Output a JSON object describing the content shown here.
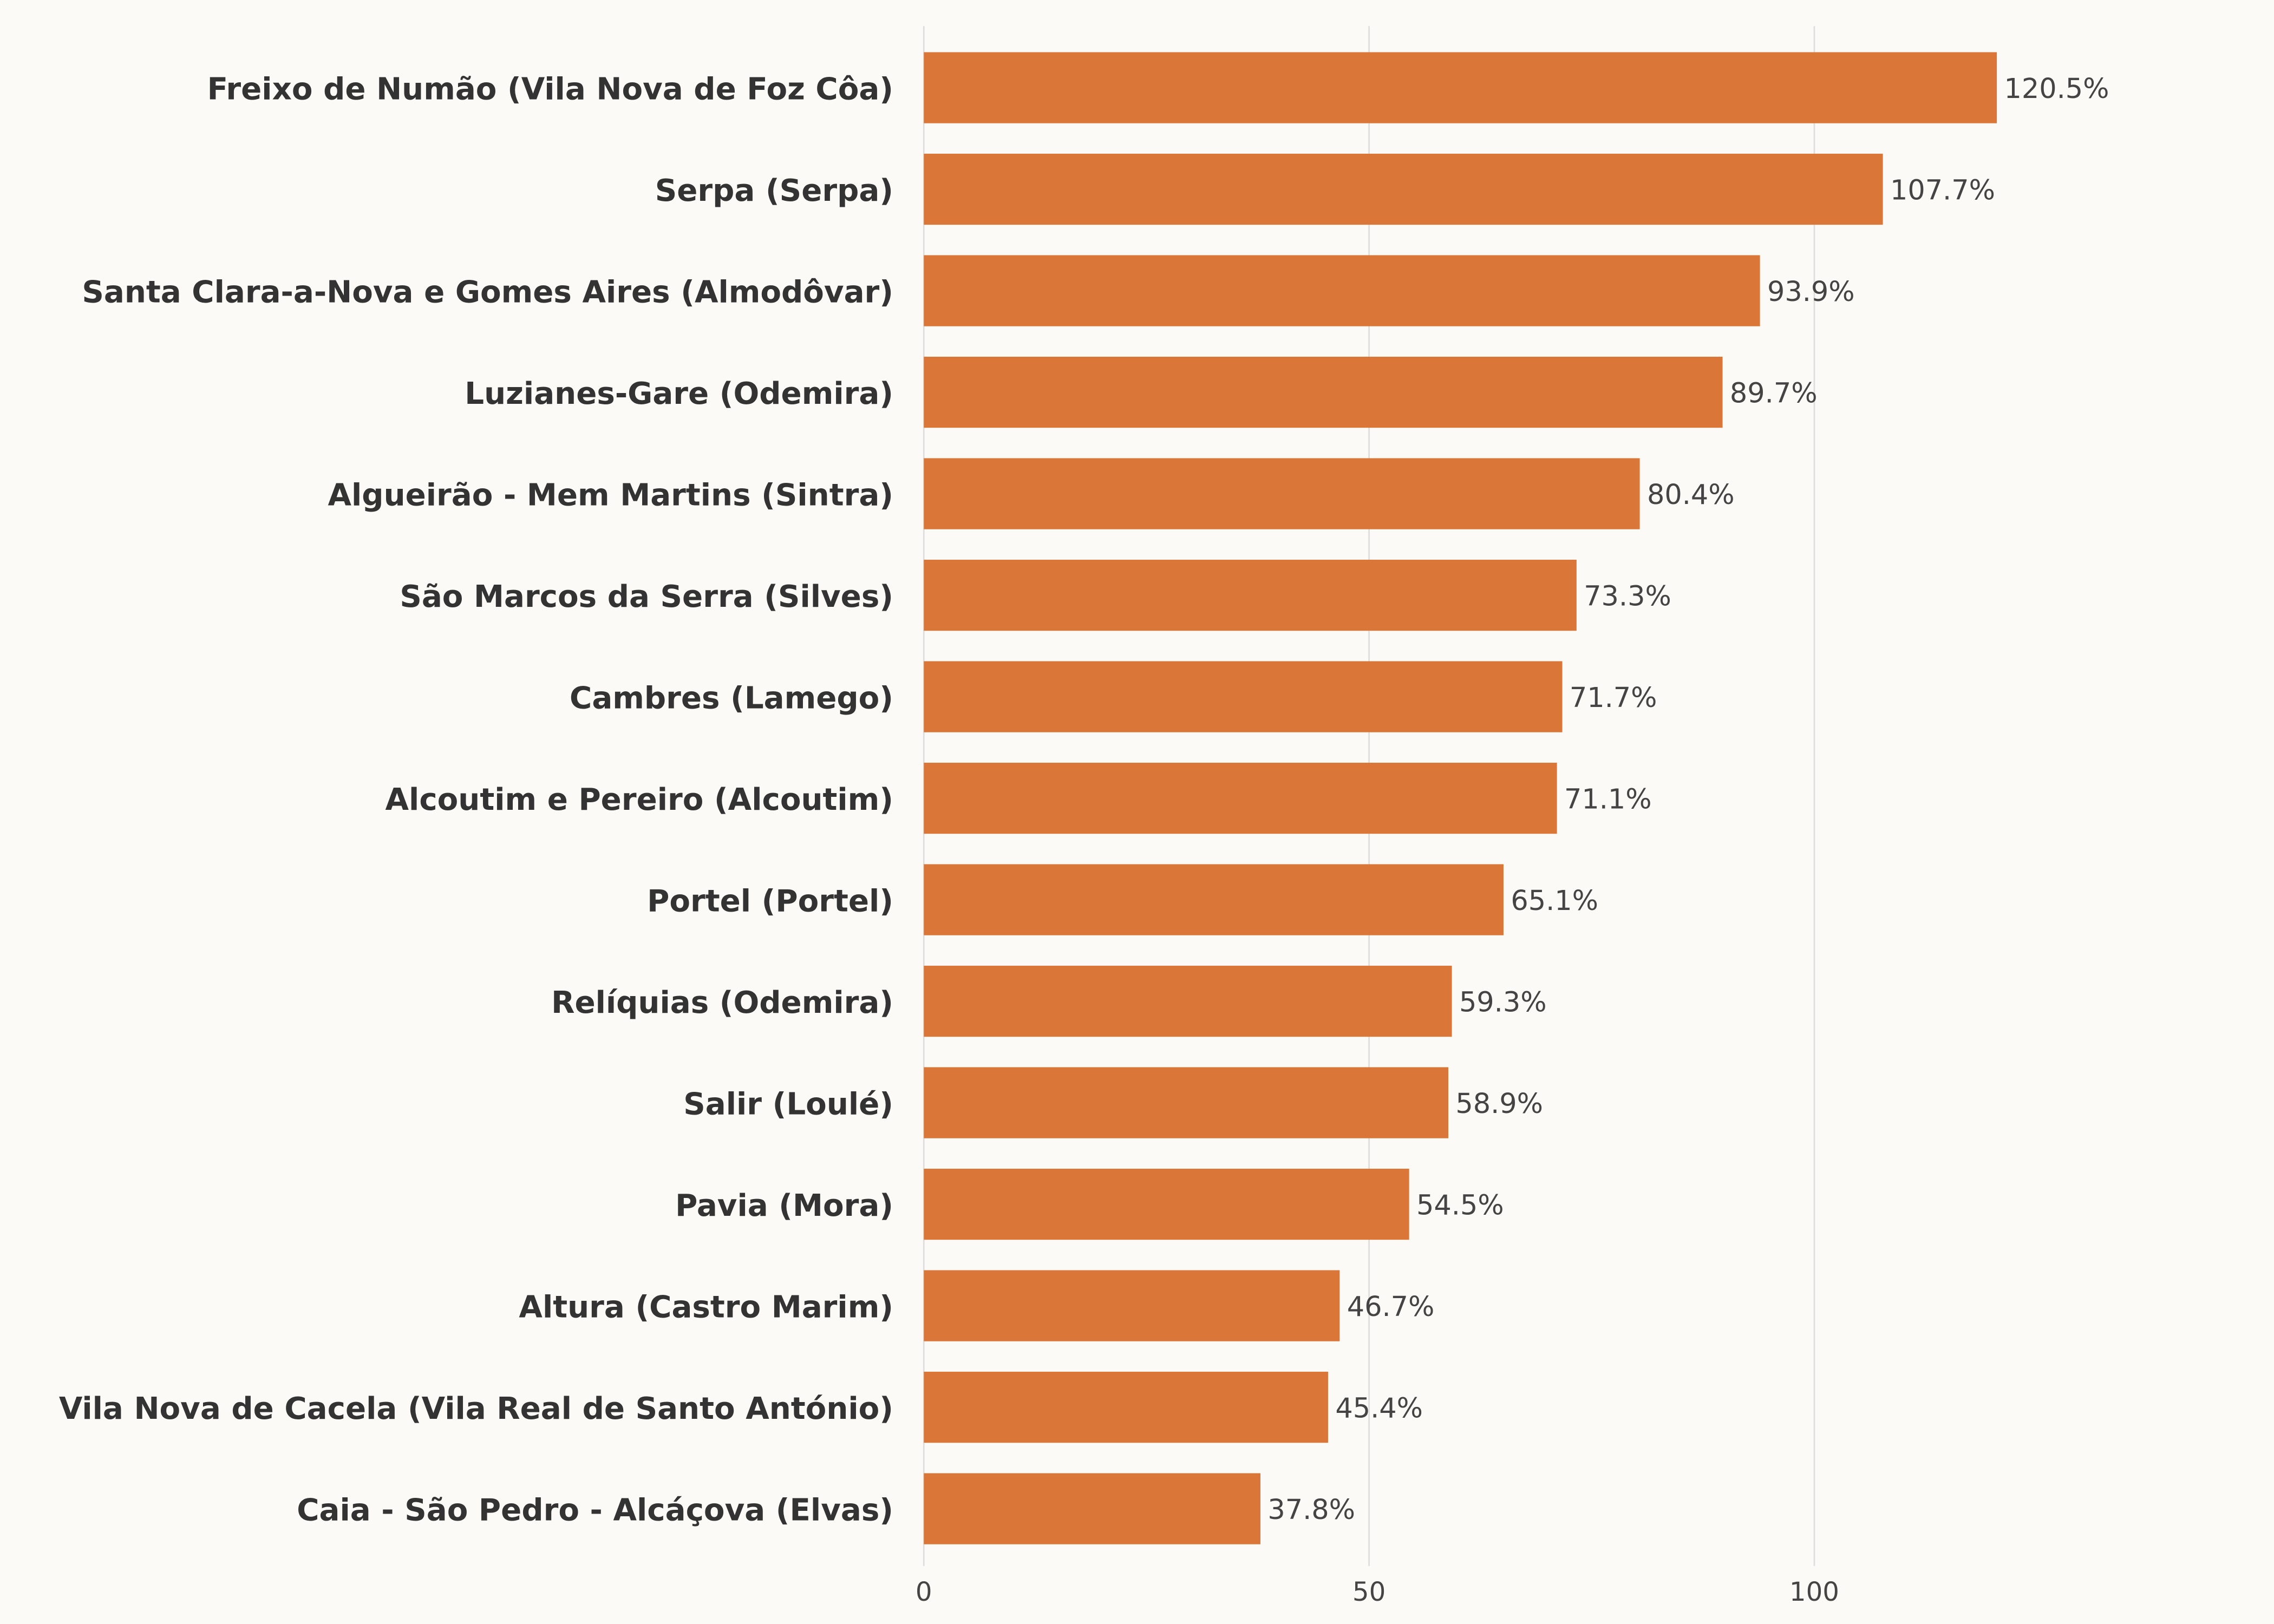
{
  "chart_data": {
    "type": "bar",
    "orientation": "horizontal",
    "categories": [
      "Freixo de Numão (Vila Nova de Foz Côa)",
      "Serpa (Serpa)",
      "Santa Clara-a-Nova e Gomes Aires (Almodôvar)",
      "Luzianes-Gare (Odemira)",
      "Algueirão - Mem Martins (Sintra)",
      "São Marcos da Serra (Silves)",
      "Cambres (Lamego)",
      "Alcoutim e Pereiro (Alcoutim)",
      "Portel (Portel)",
      "Relíquias (Odemira)",
      "Salir (Loulé)",
      "Pavia (Mora)",
      "Altura (Castro Marim)",
      "Vila Nova de Cacela (Vila Real de Santo António)",
      "Caia - São Pedro - Alcáçova (Elvas)"
    ],
    "values": [
      120.5,
      107.7,
      93.9,
      89.7,
      80.4,
      73.3,
      71.7,
      71.1,
      65.1,
      59.3,
      58.9,
      54.5,
      46.7,
      45.4,
      37.8
    ],
    "value_labels": [
      "120.5%",
      "107.7%",
      "93.9%",
      "89.7%",
      "80.4%",
      "73.3%",
      "71.7%",
      "71.1%",
      "65.1%",
      "59.3%",
      "58.9%",
      "54.5%",
      "46.7%",
      "45.4%",
      "37.8%"
    ],
    "xticks": [
      "0",
      "50",
      "100"
    ],
    "xtick_values": [
      0,
      50,
      100
    ],
    "xlim": [
      0,
      150
    ],
    "grid": "vertical",
    "title": "",
    "xlabel": "",
    "ylabel": "",
    "colors": {
      "bar": "#d97638",
      "background": "#fcfaf6",
      "grid": "#dddddd",
      "text": "#333333"
    }
  }
}
